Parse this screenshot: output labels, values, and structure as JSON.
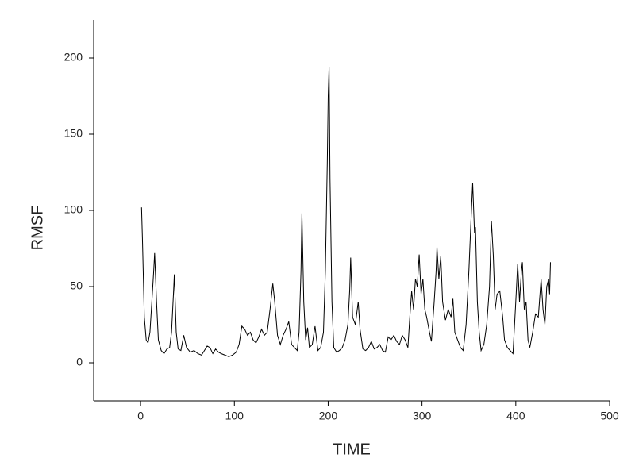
{
  "chart_data": {
    "type": "line",
    "xlabel": "TIME",
    "ylabel": "RMSF",
    "x": [
      1,
      2,
      4,
      6,
      8,
      10,
      12,
      14,
      15,
      17,
      19,
      22,
      25,
      28,
      31,
      33,
      35,
      36,
      38,
      40,
      43,
      46,
      49,
      53,
      57,
      61,
      65,
      68,
      71,
      74,
      77,
      80,
      83,
      86,
      90,
      94,
      98,
      102,
      105,
      108,
      111,
      114,
      117,
      120,
      123,
      126,
      129,
      132,
      135,
      138,
      141,
      143,
      146,
      149,
      152,
      155,
      158,
      161,
      164,
      167,
      169,
      171,
      172,
      174,
      176,
      178,
      180,
      183,
      186,
      189,
      192,
      195,
      197,
      199,
      200,
      201,
      202,
      204,
      206,
      209,
      212,
      215,
      218,
      221,
      223,
      224,
      226,
      229,
      232,
      234,
      237,
      240,
      243,
      246,
      249,
      252,
      255,
      258,
      261,
      264,
      267,
      270,
      273,
      276,
      279,
      282,
      285,
      287,
      289,
      291,
      293,
      295,
      297,
      299,
      301,
      303,
      305,
      308,
      310,
      313,
      315,
      316,
      318,
      320,
      322,
      325,
      328,
      331,
      333,
      335,
      338,
      341,
      344,
      347,
      350,
      352,
      354,
      356,
      357,
      359,
      361,
      363,
      366,
      369,
      372,
      374,
      376,
      378,
      380,
      383,
      386,
      388,
      391,
      394,
      397,
      400,
      402,
      404,
      406,
      407,
      409,
      411,
      413,
      415,
      418,
      421,
      424,
      427,
      429,
      431,
      433,
      435,
      436,
      437
    ],
    "values": [
      102,
      80,
      30,
      15,
      13,
      20,
      40,
      60,
      72,
      40,
      15,
      8,
      6,
      9,
      10,
      20,
      45,
      58,
      20,
      9,
      8,
      18,
      10,
      7,
      8,
      6,
      5,
      8,
      11,
      10,
      6,
      9,
      7,
      6,
      5,
      4,
      5,
      7,
      12,
      24,
      22,
      18,
      20,
      15,
      13,
      17,
      22,
      18,
      20,
      35,
      52,
      40,
      18,
      12,
      18,
      22,
      27,
      12,
      10,
      8,
      20,
      60,
      98,
      40,
      15,
      23,
      10,
      12,
      24,
      8,
      10,
      20,
      60,
      130,
      175,
      194,
      120,
      40,
      10,
      7,
      8,
      10,
      15,
      25,
      48,
      69,
      30,
      25,
      40,
      22,
      9,
      8,
      10,
      14,
      9,
      10,
      12,
      8,
      7,
      17,
      15,
      18,
      14,
      12,
      18,
      15,
      10,
      30,
      47,
      35,
      55,
      50,
      71,
      45,
      55,
      35,
      30,
      20,
      14,
      40,
      60,
      76,
      55,
      70,
      40,
      28,
      35,
      30,
      42,
      20,
      15,
      10,
      8,
      25,
      60,
      90,
      118,
      85,
      89,
      40,
      20,
      8,
      12,
      25,
      50,
      93,
      70,
      35,
      45,
      47,
      30,
      15,
      10,
      8,
      6,
      40,
      65,
      40,
      60,
      66,
      35,
      40,
      15,
      10,
      20,
      32,
      30,
      55,
      35,
      25,
      50,
      55,
      45,
      66
    ],
    "color": "#000000",
    "xlim": [
      -50,
      500
    ],
    "xticks": [
      0,
      100,
      200,
      300,
      400,
      500
    ],
    "ylim": [
      -25,
      225
    ],
    "yticks": [
      0,
      50,
      100,
      150,
      200
    ]
  }
}
